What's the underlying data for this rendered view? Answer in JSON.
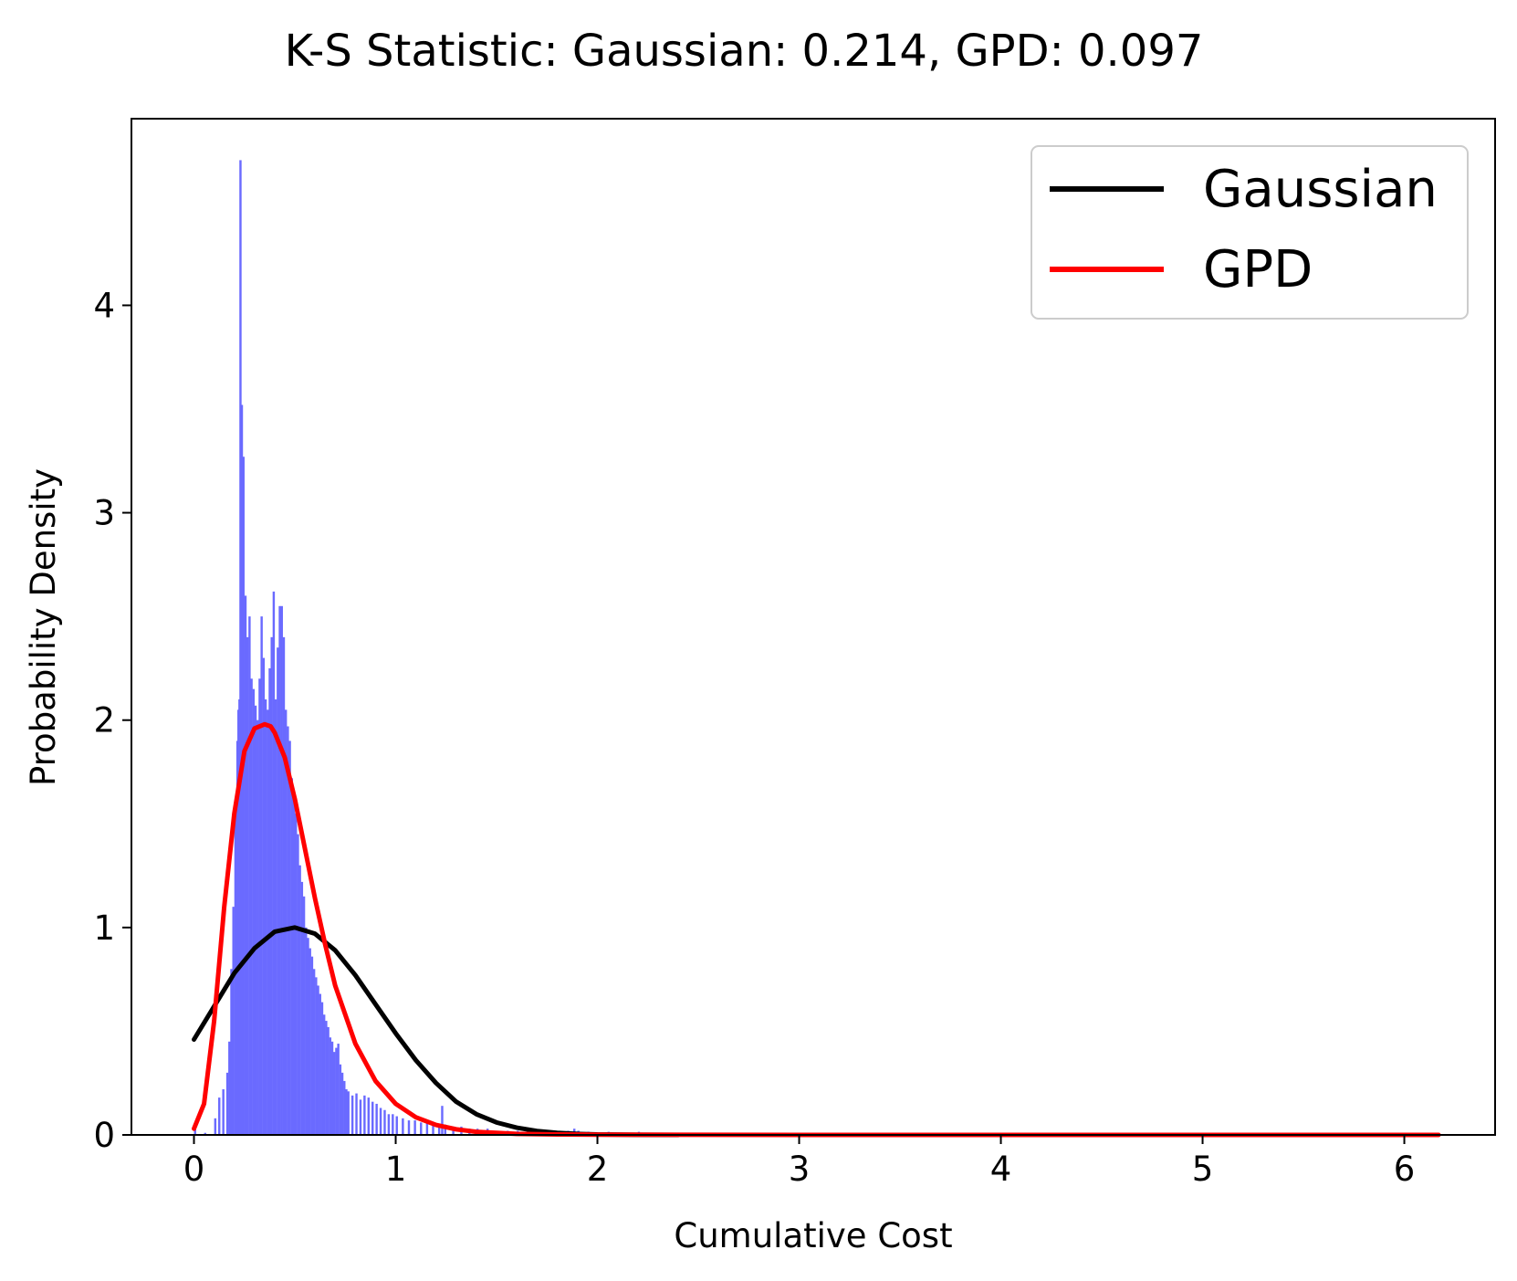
{
  "chart_data": {
    "type": "histogram_with_fitted_curves",
    "title": "K-S Statistic: Gaussian: 0.214, GPD: 0.097",
    "xlabel": "Cumulative Cost",
    "ylabel": "Probability Density",
    "xlim": [
      -0.31,
      6.45
    ],
    "ylim": [
      0,
      4.9
    ],
    "x_ticks": [
      0,
      1,
      2,
      3,
      4,
      5,
      6
    ],
    "y_ticks": [
      0,
      1,
      2,
      3,
      4
    ],
    "legend_position": "top-right",
    "histogram": {
      "color": "#6a6aff",
      "bin_width": 0.011,
      "points": [
        [
          0.0,
          0.03
        ],
        [
          0.05,
          0.01
        ],
        [
          0.1,
          0.08
        ],
        [
          0.12,
          0.18
        ],
        [
          0.14,
          0.22
        ],
        [
          0.16,
          0.3
        ],
        [
          0.17,
          0.45
        ],
        [
          0.18,
          0.8
        ],
        [
          0.19,
          1.1
        ],
        [
          0.2,
          1.55
        ],
        [
          0.21,
          1.9
        ],
        [
          0.215,
          2.05
        ],
        [
          0.22,
          2.1
        ],
        [
          0.225,
          4.7
        ],
        [
          0.232,
          3.52
        ],
        [
          0.24,
          3.27
        ],
        [
          0.25,
          2.6
        ],
        [
          0.26,
          2.4
        ],
        [
          0.27,
          2.5
        ],
        [
          0.28,
          2.2
        ],
        [
          0.29,
          2.15
        ],
        [
          0.3,
          2.07
        ],
        [
          0.31,
          2.0
        ],
        [
          0.32,
          2.2
        ],
        [
          0.33,
          2.5
        ],
        [
          0.34,
          2.3
        ],
        [
          0.35,
          2.1
        ],
        [
          0.36,
          2.05
        ],
        [
          0.37,
          2.25
        ],
        [
          0.38,
          2.4
        ],
        [
          0.39,
          2.62
        ],
        [
          0.4,
          2.1
        ],
        [
          0.41,
          2.35
        ],
        [
          0.42,
          2.55
        ],
        [
          0.43,
          2.55
        ],
        [
          0.44,
          2.4
        ],
        [
          0.45,
          2.05
        ],
        [
          0.46,
          1.97
        ],
        [
          0.47,
          1.9
        ],
        [
          0.48,
          1.72
        ],
        [
          0.49,
          1.62
        ],
        [
          0.5,
          1.55
        ],
        [
          0.51,
          1.45
        ],
        [
          0.52,
          1.3
        ],
        [
          0.53,
          1.22
        ],
        [
          0.54,
          1.15
        ],
        [
          0.55,
          1.0
        ],
        [
          0.56,
          0.95
        ],
        [
          0.57,
          0.9
        ],
        [
          0.58,
          0.86
        ],
        [
          0.59,
          0.8
        ],
        [
          0.6,
          0.76
        ],
        [
          0.61,
          0.72
        ],
        [
          0.62,
          0.68
        ],
        [
          0.63,
          0.64
        ],
        [
          0.64,
          0.58
        ],
        [
          0.65,
          0.55
        ],
        [
          0.66,
          0.52
        ],
        [
          0.67,
          0.47
        ],
        [
          0.68,
          0.45
        ],
        [
          0.69,
          0.4
        ],
        [
          0.7,
          0.42
        ],
        [
          0.71,
          0.44
        ],
        [
          0.72,
          0.34
        ],
        [
          0.73,
          0.3
        ],
        [
          0.74,
          0.26
        ],
        [
          0.75,
          0.22
        ],
        [
          0.76,
          0.21
        ],
        [
          0.78,
          0.19
        ],
        [
          0.8,
          0.2
        ],
        [
          0.82,
          0.17
        ],
        [
          0.84,
          0.19
        ],
        [
          0.86,
          0.18
        ],
        [
          0.88,
          0.16
        ],
        [
          0.9,
          0.15
        ],
        [
          0.92,
          0.13
        ],
        [
          0.94,
          0.12
        ],
        [
          0.96,
          0.1
        ],
        [
          0.98,
          0.1
        ],
        [
          1.0,
          0.09
        ],
        [
          1.03,
          0.08
        ],
        [
          1.06,
          0.07
        ],
        [
          1.09,
          0.07
        ],
        [
          1.12,
          0.06
        ],
        [
          1.15,
          0.06
        ],
        [
          1.18,
          0.05
        ],
        [
          1.21,
          0.05
        ],
        [
          1.225,
          0.14
        ],
        [
          1.24,
          0.05
        ],
        [
          1.28,
          0.04
        ],
        [
          1.32,
          0.04
        ],
        [
          1.36,
          0.03
        ],
        [
          1.4,
          0.03
        ],
        [
          1.45,
          0.03
        ],
        [
          1.5,
          0.02
        ],
        [
          1.55,
          0.02
        ],
        [
          1.6,
          0.02
        ],
        [
          1.65,
          0.02
        ],
        [
          1.7,
          0.02
        ],
        [
          1.75,
          0.015
        ],
        [
          1.8,
          0.015
        ],
        [
          1.85,
          0.02
        ],
        [
          1.88,
          0.03
        ],
        [
          1.9,
          0.02
        ],
        [
          1.95,
          0.015
        ],
        [
          2.0,
          0.01
        ],
        [
          2.05,
          0.015
        ],
        [
          2.1,
          0.01
        ],
        [
          2.15,
          0.01
        ],
        [
          2.2,
          0.015
        ],
        [
          2.25,
          0.01
        ],
        [
          2.3,
          0.008
        ],
        [
          2.35,
          0.006
        ],
        [
          2.4,
          0.005
        ],
        [
          2.5,
          0.004
        ],
        [
          2.6,
          0.003
        ],
        [
          2.8,
          0.002
        ],
        [
          3.0,
          0.002
        ]
      ]
    },
    "series": [
      {
        "name": "Gaussian",
        "color": "#000000",
        "x": [
          0.0,
          0.1,
          0.2,
          0.3,
          0.4,
          0.5,
          0.6,
          0.7,
          0.8,
          0.9,
          1.0,
          1.1,
          1.2,
          1.3,
          1.4,
          1.5,
          1.6,
          1.7,
          1.8,
          1.9,
          2.0,
          2.2,
          2.4
        ],
        "y": [
          0.46,
          0.62,
          0.78,
          0.9,
          0.98,
          1.0,
          0.97,
          0.89,
          0.77,
          0.63,
          0.49,
          0.36,
          0.25,
          0.16,
          0.1,
          0.06,
          0.035,
          0.019,
          0.01,
          0.005,
          0.002,
          0.0005,
          0.0
        ]
      },
      {
        "name": "GPD",
        "color": "#ff0000",
        "x": [
          0.0,
          0.05,
          0.1,
          0.15,
          0.2,
          0.25,
          0.3,
          0.35,
          0.38,
          0.4,
          0.45,
          0.5,
          0.55,
          0.6,
          0.65,
          0.7,
          0.8,
          0.9,
          1.0,
          1.1,
          1.2,
          1.3,
          1.4,
          1.6,
          1.8,
          2.0,
          2.5,
          3.0,
          4.0,
          5.0,
          6.17
        ],
        "y": [
          0.03,
          0.15,
          0.55,
          1.1,
          1.55,
          1.85,
          1.96,
          1.98,
          1.97,
          1.94,
          1.82,
          1.62,
          1.38,
          1.14,
          0.92,
          0.72,
          0.44,
          0.26,
          0.15,
          0.085,
          0.048,
          0.027,
          0.015,
          0.005,
          0.002,
          0.001,
          0.0003,
          0.0001,
          0.0,
          0.0,
          0.0
        ]
      }
    ]
  }
}
